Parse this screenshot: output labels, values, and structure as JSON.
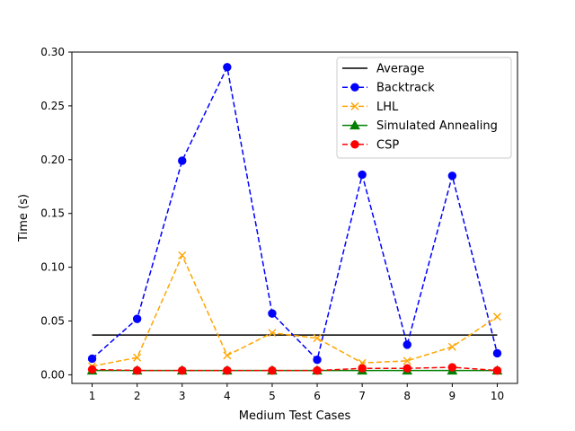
{
  "chart_data": {
    "type": "line",
    "title": "",
    "xlabel": "Medium Test Cases",
    "ylabel": "Time (s)",
    "x": [
      1,
      2,
      3,
      4,
      5,
      6,
      7,
      8,
      9,
      10
    ],
    "xticks": [
      "1",
      "2",
      "3",
      "4",
      "5",
      "6",
      "7",
      "8",
      "9",
      "10"
    ],
    "yticks": [
      "0.00",
      "0.05",
      "0.10",
      "0.15",
      "0.20",
      "0.25",
      "0.30"
    ],
    "xlim": [
      0.55,
      10.45
    ],
    "ylim": [
      -0.008,
      0.3
    ],
    "grid": false,
    "legend_position": "top-right",
    "series": [
      {
        "name": "Average",
        "color": "#000000",
        "dash": "solid",
        "marker": "none",
        "values": [
          0.037,
          0.037,
          0.037,
          0.037,
          0.037,
          0.037,
          0.037,
          0.037,
          0.037,
          0.037
        ]
      },
      {
        "name": "Backtrack",
        "color": "#0000ff",
        "dash": "dashed",
        "marker": "circle",
        "values": [
          0.015,
          0.052,
          0.199,
          0.286,
          0.057,
          0.014,
          0.186,
          0.028,
          0.185,
          0.02
        ]
      },
      {
        "name": "LHL",
        "color": "#ffa500",
        "dash": "dashed",
        "marker": "x",
        "values": [
          0.008,
          0.016,
          0.111,
          0.018,
          0.039,
          0.034,
          0.011,
          0.013,
          0.026,
          0.054
        ]
      },
      {
        "name": "Simulated Annealing",
        "color": "#008000",
        "dash": "solid",
        "marker": "triangle",
        "values": [
          0.004,
          0.004,
          0.004,
          0.004,
          0.004,
          0.004,
          0.004,
          0.004,
          0.004,
          0.004
        ]
      },
      {
        "name": "CSP",
        "color": "#ff0000",
        "dash": "dashed",
        "marker": "circle",
        "values": [
          0.005,
          0.004,
          0.004,
          0.004,
          0.004,
          0.004,
          0.006,
          0.006,
          0.007,
          0.004
        ]
      }
    ]
  }
}
